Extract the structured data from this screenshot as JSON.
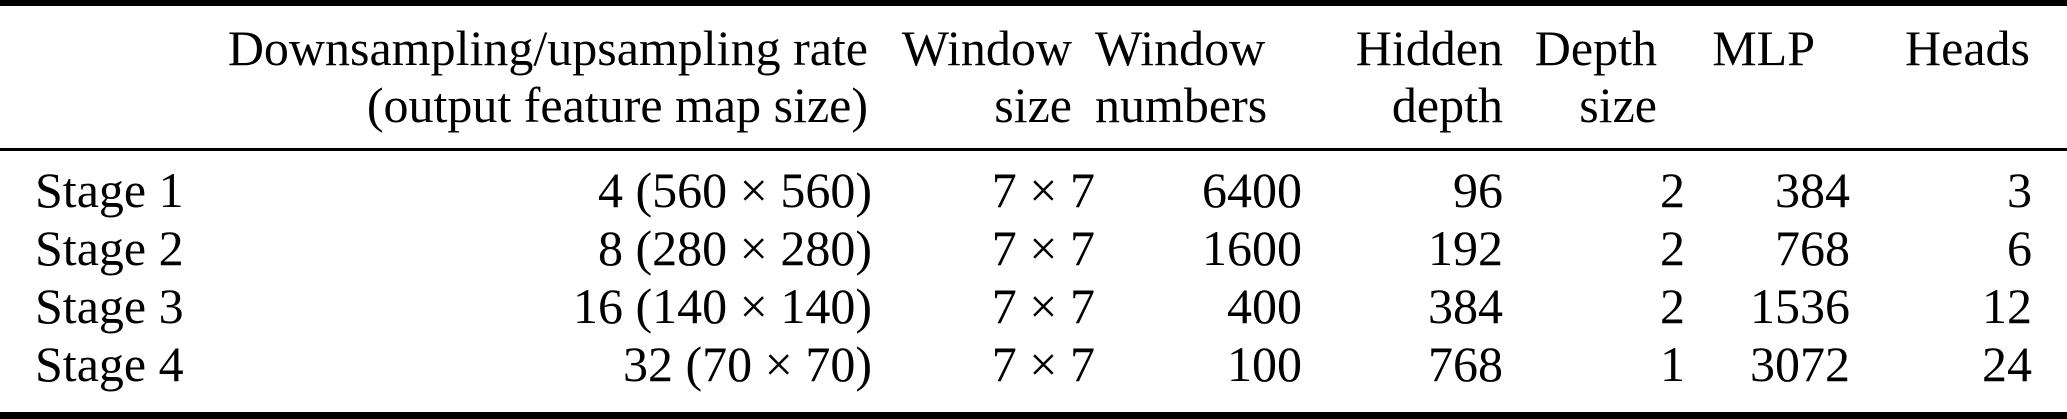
{
  "colors": {
    "background": "#ffffff",
    "text": "#000000",
    "rule": "#000000"
  },
  "table": {
    "header": {
      "stage": "",
      "rate": {
        "line1": "Downsampling/upsampling rate",
        "line2": "(output feature map size)"
      },
      "window_size": {
        "line1": "Window",
        "line2": "size"
      },
      "window_numbers": {
        "line1": "Window",
        "line2": "numbers"
      },
      "hidden_depth": {
        "line1": "Hidden",
        "line2": "depth"
      },
      "depth_size": {
        "line1": "Depth",
        "line2": "size"
      },
      "mlp": "MLP",
      "heads": "Heads"
    },
    "rows": [
      {
        "stage": "Stage 1",
        "rate": "4 (560 × 560)",
        "window_size": "7 × 7",
        "window_numbers": "6400",
        "hidden_depth": "96",
        "depth_size": "2",
        "mlp": "384",
        "heads": "3"
      },
      {
        "stage": "Stage 2",
        "rate": "8 (280 × 280)",
        "window_size": "7 × 7",
        "window_numbers": "1600",
        "hidden_depth": "192",
        "depth_size": "2",
        "mlp": "768",
        "heads": "6"
      },
      {
        "stage": "Stage 3",
        "rate": "16 (140 × 140)",
        "window_size": "7 × 7",
        "window_numbers": "400",
        "hidden_depth": "384",
        "depth_size": "2",
        "mlp": "1536",
        "heads": "12"
      },
      {
        "stage": "Stage 4",
        "rate": "32 (70 × 70)",
        "window_size": "7 × 7",
        "window_numbers": "100",
        "hidden_depth": "768",
        "depth_size": "1",
        "mlp": "3072",
        "heads": "24"
      }
    ]
  }
}
